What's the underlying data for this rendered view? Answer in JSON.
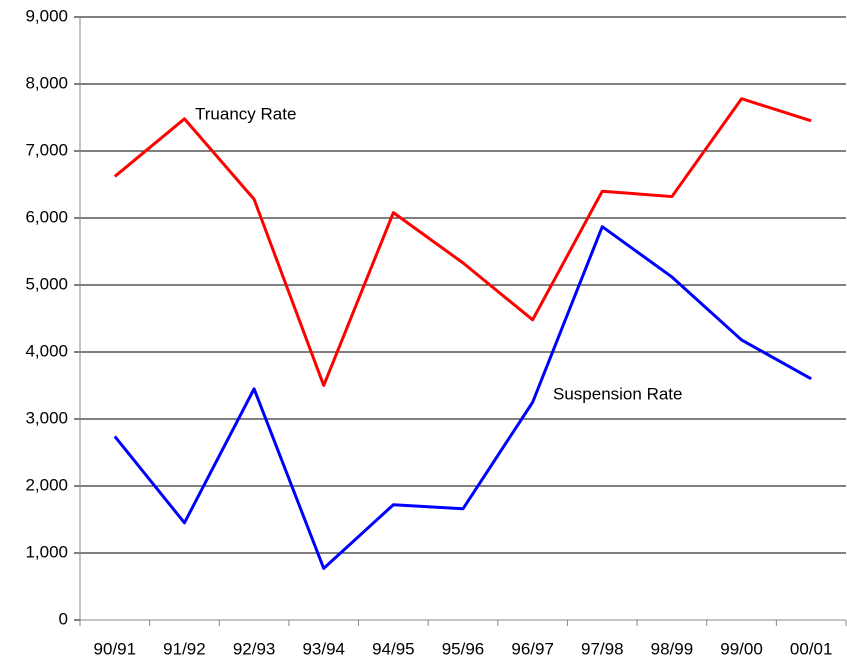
{
  "chart_data": {
    "type": "line",
    "categories": [
      "90/91",
      "91/92",
      "92/93",
      "93/94",
      "94/95",
      "95/96",
      "96/97",
      "97/98",
      "98/99",
      "99/00",
      "00/01"
    ],
    "series": [
      {
        "name": "Truancy Rate",
        "color": "#ff0000",
        "values": [
          6620,
          7480,
          6280,
          3500,
          6080,
          5330,
          4480,
          6400,
          6320,
          7780,
          7450
        ]
      },
      {
        "name": "Suspension Rate",
        "color": "#0000ff",
        "values": [
          2740,
          1450,
          3450,
          770,
          1720,
          1660,
          3250,
          5870,
          5120,
          4180,
          3600
        ]
      }
    ],
    "ylim": [
      0,
      9000
    ],
    "yticks": [
      0,
      {
        "value": 1000,
        "label": "1,000"
      },
      {
        "value": 2000,
        "label": "2,000"
      },
      {
        "value": 3000,
        "label": "3,000"
      },
      {
        "value": 4000,
        "label": "4,000"
      },
      {
        "value": 5000,
        "label": "5,000"
      },
      {
        "value": 6000,
        "label": "6,000"
      },
      {
        "value": 7000,
        "label": "7,000"
      },
      {
        "value": 8000,
        "label": "8,000"
      },
      {
        "value": 9000,
        "label": "9,000"
      }
    ],
    "grid": true
  }
}
